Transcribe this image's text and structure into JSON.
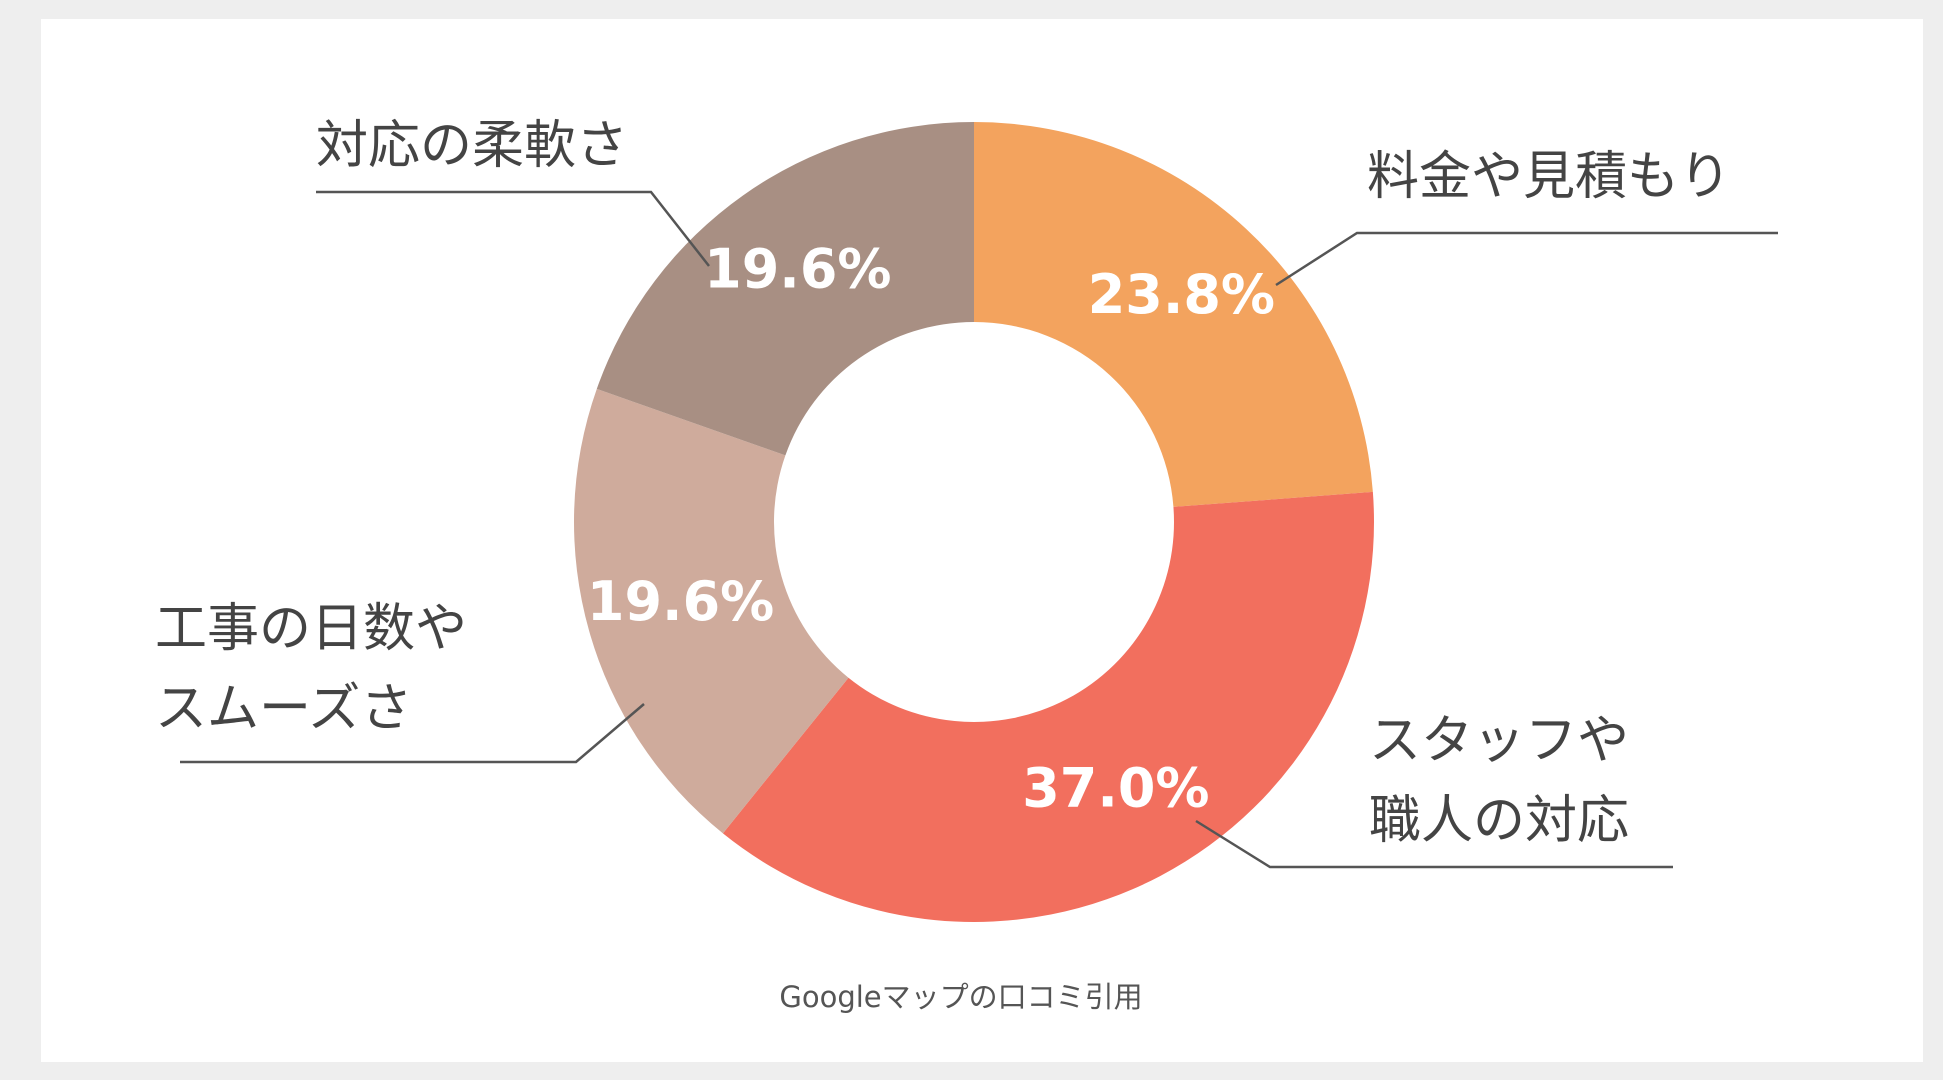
{
  "chart_data": {
    "type": "donut",
    "categories": [
      "料金や見積もり",
      "スタッフや\n職人の対応",
      "工事の日数や\nスムーズさ",
      "対応の柔軟さ"
    ],
    "values": [
      23.8,
      37.0,
      19.6,
      19.6
    ],
    "value_labels": [
      "23.8%",
      "37.0%",
      "19.6%",
      "19.6%"
    ],
    "colors": [
      "#f3a35e",
      "#f26f5e",
      "#cfab9c",
      "#a88f83"
    ],
    "caption": "Googleマップの口コミ引用"
  }
}
